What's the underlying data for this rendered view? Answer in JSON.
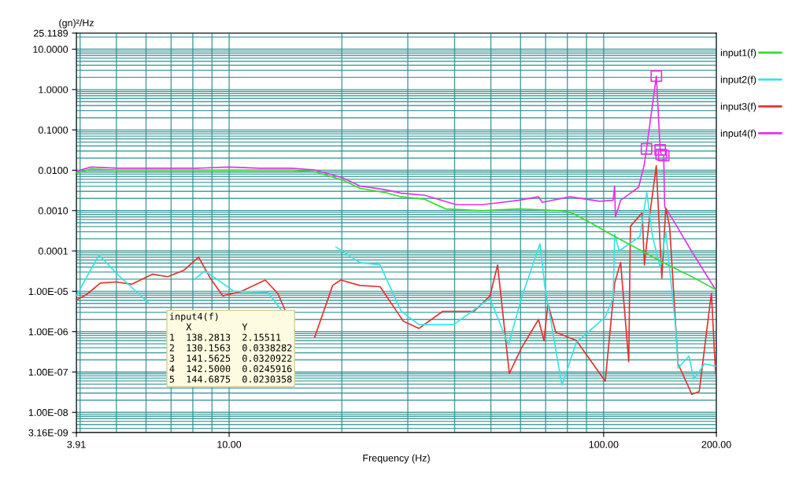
{
  "chart_data": {
    "type": "line",
    "xlabel": "Frequency (Hz)",
    "ylabel": "(gn)²/Hz",
    "log": "xy",
    "grid": true,
    "legend": "right",
    "marker": "none",
    "line_style": "solid",
    "xlim": [
      3.91,
      200
    ],
    "xticks": [
      {
        "value": 3.91,
        "label": "3.91"
      },
      {
        "value": 10,
        "label": "10.00"
      },
      {
        "value": 100,
        "label": "100.00"
      },
      {
        "value": 200,
        "label": "200.00"
      }
    ],
    "ylim": [
      3.16e-09,
      25.1189
    ],
    "yticks": [
      {
        "value": 25.1189,
        "label": "25.1189"
      },
      {
        "value": 10,
        "label": "10.0000"
      },
      {
        "value": 1,
        "label": "1.0000"
      },
      {
        "value": 0.1,
        "label": "0.1000"
      },
      {
        "value": 0.01,
        "label": "0.0100"
      },
      {
        "value": 0.001,
        "label": "0.0010"
      },
      {
        "value": 0.0001,
        "label": "0.0001"
      },
      {
        "value": 1e-05,
        "label": "1.00E-05"
      },
      {
        "value": 1e-06,
        "label": "1.00E-06"
      },
      {
        "value": 1e-07,
        "label": "1.00E-07"
      },
      {
        "value": 1e-08,
        "label": "1.00E-08"
      },
      {
        "value": 3.16e-09,
        "label": "3.16E-09"
      }
    ],
    "annotations": [
      "input4(f)\n   X         Y\n1  138.2813  2.15511\n2  130.1563  0.0338282\n3  141.5625  0.0320922\n4  142.5000  0.0245916\n5  144.6875  0.0230358"
    ],
    "series": [
      {
        "name": "input1(f)",
        "color": "#33dd33",
        "x": [
          3.91,
          4.28,
          5.06,
          6.44,
          8.2,
          10,
          12.07,
          14.64,
          16.92,
          20.2,
          22.3,
          26.1,
          28.8,
          33.3,
          37.9,
          47.3,
          59.4,
          76.7,
          82,
          90.3,
          106,
          124,
          146.5,
          172,
          199
        ],
        "values": [
          0.0085,
          0.0108,
          0.01,
          0.01,
          0.01,
          0.01,
          0.01,
          0.01,
          0.0092,
          0.0056,
          0.0036,
          0.0028,
          0.0022,
          0.0019,
          0.0011,
          0.001,
          0.0011,
          0.001,
          0.00088,
          0.00056,
          0.00024,
          0.00011,
          4.8e-05,
          2.3e-05,
          1.1e-05
        ]
      },
      {
        "name": "input2(f)",
        "color": "#33e5e5",
        "x": [
          3.91,
          4.49,
          5.06,
          6.14,
          7.0,
          8.09,
          8.61,
          9.35,
          10.3,
          12.67,
          13.75,
          14.6,
          19.3,
          22.3,
          25.3,
          28.8,
          32.1,
          39.8,
          49.7,
          55.7,
          60.3,
          67.6,
          69.6,
          77.4,
          84.5,
          101,
          106,
          107,
          110,
          125,
          130.4,
          135,
          141.6,
          146.5,
          156,
          158,
          169,
          174,
          186,
          199
        ],
        "values": [
          7.7e-06,
          8e-05,
          2.5e-05,
          4.9e-06,
          null,
          2e-05,
          3.2e-05,
          1.9e-05,
          1e-05,
          9.6e-06,
          3.5e-06,
          null,
          0.000125,
          5.2e-05,
          4.5e-05,
          3.2e-06,
          1.5e-06,
          1.5e-06,
          6.7e-06,
          4.7e-07,
          6.7e-06,
          0.00015,
          1.4e-05,
          4.7e-08,
          5.4e-07,
          2.3e-06,
          6.7e-06,
          0.00026,
          0.0001,
          0.00023,
          0.0028,
          0.00023,
          3.9e-05,
          0.0003,
          1.1e-06,
          1.25e-07,
          2.5e-07,
          6.7e-08,
          1.6e-07,
          1.4e-07
        ]
      },
      {
        "name": "input3(f)",
        "color": "#e53030",
        "x": [
          3.91,
          4.17,
          4.53,
          4.99,
          5.5,
          6.23,
          6.86,
          7.56,
          8.29,
          8.91,
          9.62,
          10.8,
          12.49,
          13.49,
          14.09,
          15.5,
          16.92,
          18.9,
          19.86,
          22.3,
          25.3,
          29.2,
          32.1,
          37.2,
          45.1,
          49.7,
          52.1,
          56.0,
          60.3,
          67.0,
          69.3,
          71.0,
          74.5,
          84.5,
          101,
          107,
          111,
          116.7,
          117.9,
          126.7,
          128.5,
          133,
          138.2,
          143,
          146.5,
          150,
          158,
          172,
          180,
          192,
          194,
          199
        ],
        "values": [
          6.1e-06,
          8.4e-06,
          1.6e-05,
          1.7e-05,
          1.5e-05,
          2.65e-05,
          2.3e-05,
          3.3e-05,
          7e-05,
          2.1e-05,
          7.7e-06,
          1e-05,
          1.9e-05,
          8.8e-06,
          3.5e-06,
          null,
          7.3e-07,
          1.4e-05,
          1.9e-05,
          1.4e-05,
          1.3e-05,
          1.8e-06,
          1.2e-06,
          3.2e-06,
          3.2e-06,
          7.7e-06,
          4.5e-05,
          9.2e-08,
          3.9e-07,
          2e-06,
          5.9e-07,
          4.9e-06,
          9.6e-07,
          6.1e-07,
          5.9e-08,
          1.6e-05,
          5.2e-05,
          1.8e-07,
          0.00041,
          0.00088,
          4.5e-05,
          0.00088,
          0.013,
          2.1e-05,
          0.00114,
          0.00041,
          1.6e-07,
          2.8e-08,
          3.3e-08,
          4.3e-06,
          8.8e-06,
          9.2e-08
        ]
      },
      {
        "name": "input4(f)",
        "color": "#e533e5",
        "x": [
          3.91,
          4.28,
          5.06,
          6.44,
          8.2,
          10,
          12.07,
          14.64,
          16.92,
          20.2,
          22.3,
          26.1,
          28.8,
          33.3,
          40.4,
          47.3,
          59.4,
          67.0,
          68.6,
          81.3,
          97.6,
          106,
          107,
          107.5,
          111,
          124,
          128.5,
          130.1563,
          138.2813,
          141.5625,
          142.5,
          144.6875,
          145.5,
          153.7,
          172,
          199
        ],
        "values": [
          0.0095,
          0.012,
          0.0112,
          0.0112,
          0.0112,
          0.012,
          0.0112,
          0.0112,
          0.0102,
          0.0064,
          0.0041,
          0.0033,
          0.0027,
          0.0024,
          0.0014,
          0.0014,
          0.0018,
          0.0022,
          0.0016,
          0.0022,
          0.0017,
          0.0018,
          0.0041,
          0.0007,
          0.0018,
          0.0038,
          0.0143,
          0.0338282,
          2.15511,
          0.0320922,
          0.0245916,
          0.0230358,
          0.00125,
          0.00056,
          9.6e-05,
          1.1e-05
        ]
      },
      {
        "type": "scatter",
        "marker": "square",
        "color": "#e533e5",
        "x": [
          138.2813,
          130.1563,
          141.5625,
          142.5,
          144.6875
        ],
        "values": [
          2.15511,
          0.0338282,
          0.0320922,
          0.0245916,
          0.0230358
        ]
      }
    ]
  }
}
